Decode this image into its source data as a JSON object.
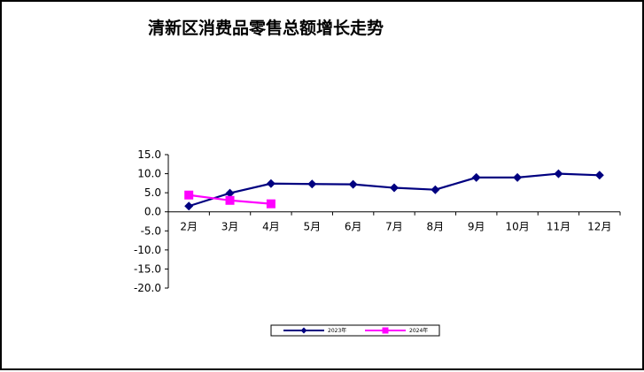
{
  "chart_data": {
    "type": "line",
    "title": "清新区消费品零售总额增长走势",
    "xlabel": "",
    "ylabel": "",
    "categories": [
      "2月",
      "3月",
      "4月",
      "5月",
      "6月",
      "7月",
      "8月",
      "9月",
      "10月",
      "11月",
      "12月"
    ],
    "ylim": [
      -20,
      15
    ],
    "yticks": [
      "15.0",
      "10.0",
      "5.0",
      "0.0",
      "-5.0",
      "-10.0",
      "-15.0",
      "-20.0"
    ],
    "grid": false,
    "legend_position": "bottom",
    "series": [
      {
        "name": "2023年",
        "color": "#000080",
        "marker": "diamond",
        "values": [
          1.5,
          4.9,
          7.4,
          7.3,
          7.2,
          6.3,
          5.8,
          9.0,
          9.0,
          10.0,
          9.6
        ]
      },
      {
        "name": "2024年",
        "color": "#ff00ff",
        "marker": "square",
        "values": [
          4.4,
          3.0,
          2.1,
          null,
          null,
          null,
          null,
          null,
          null,
          null,
          null
        ]
      }
    ]
  }
}
